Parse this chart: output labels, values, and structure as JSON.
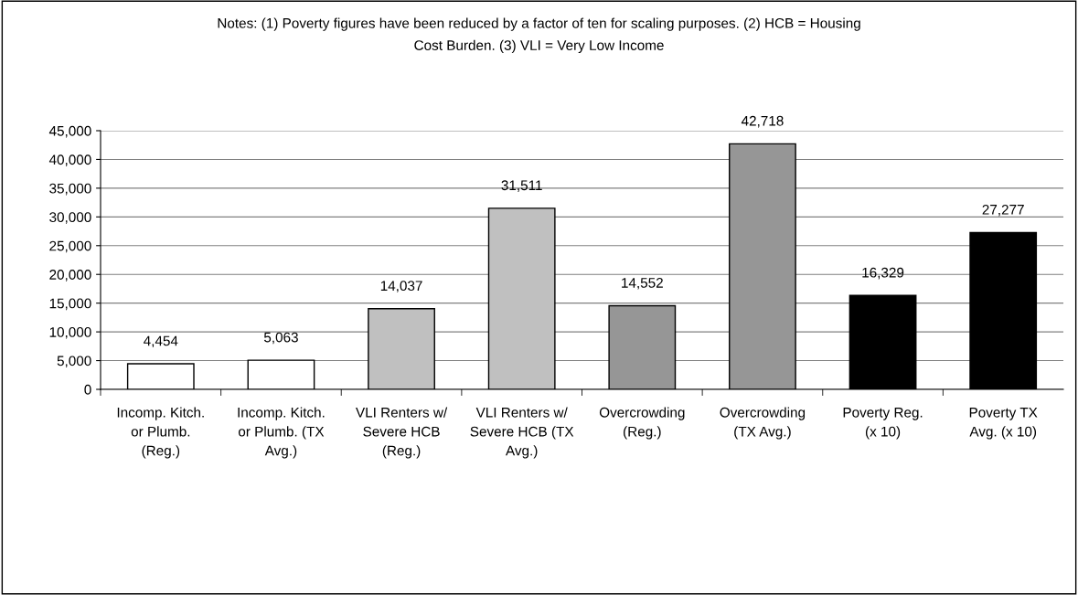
{
  "chart_data": {
    "type": "bar",
    "annotations": [
      "Notes: (1) Poverty figures have been reduced by a factor of ten for scaling purposes. (2) HCB = Housing Cost Burden. (3) VLI = Very Low Income"
    ],
    "categories": [
      "Incomp. Kitch. or Plumb. (Reg.)",
      "Incomp. Kitch. or Plumb. (TX Avg.)",
      "VLI Renters w/ Severe HCB (Reg.)",
      "VLI Renters w/ Severe HCB (TX Avg.)",
      "Overcrowding (Reg.)",
      "Overcrowding (TX Avg.)",
      "Poverty Reg. (x 10)",
      "Poverty TX Avg. (x 10)"
    ],
    "values": [
      4454,
      5063,
      14037,
      31511,
      14552,
      42718,
      16329,
      27277
    ],
    "colors": [
      "#ffffff",
      "#ffffff",
      "#c0c0c0",
      "#c0c0c0",
      "#969696",
      "#969696",
      "#000000",
      "#000000"
    ],
    "ylim": [
      0,
      45000
    ],
    "yticks": [
      {
        "value": 0,
        "label": "0"
      },
      {
        "value": 5000,
        "label": "5,000"
      },
      {
        "value": 10000,
        "label": "10,000"
      },
      {
        "value": 15000,
        "label": "15,000"
      },
      {
        "value": 20000,
        "label": "20,000"
      },
      {
        "value": 25000,
        "label": "25,000"
      },
      {
        "value": 30000,
        "label": "30,000"
      },
      {
        "value": 35000,
        "label": "35,000"
      },
      {
        "value": 40000,
        "label": "40,000"
      },
      {
        "value": 45000,
        "label": "45,000"
      }
    ],
    "grid": "y",
    "value_labels": [
      "4,454",
      "5,063",
      "14,037",
      "31,511",
      "14,552",
      "42,718",
      "16,329",
      "27,277"
    ],
    "legend": false
  }
}
